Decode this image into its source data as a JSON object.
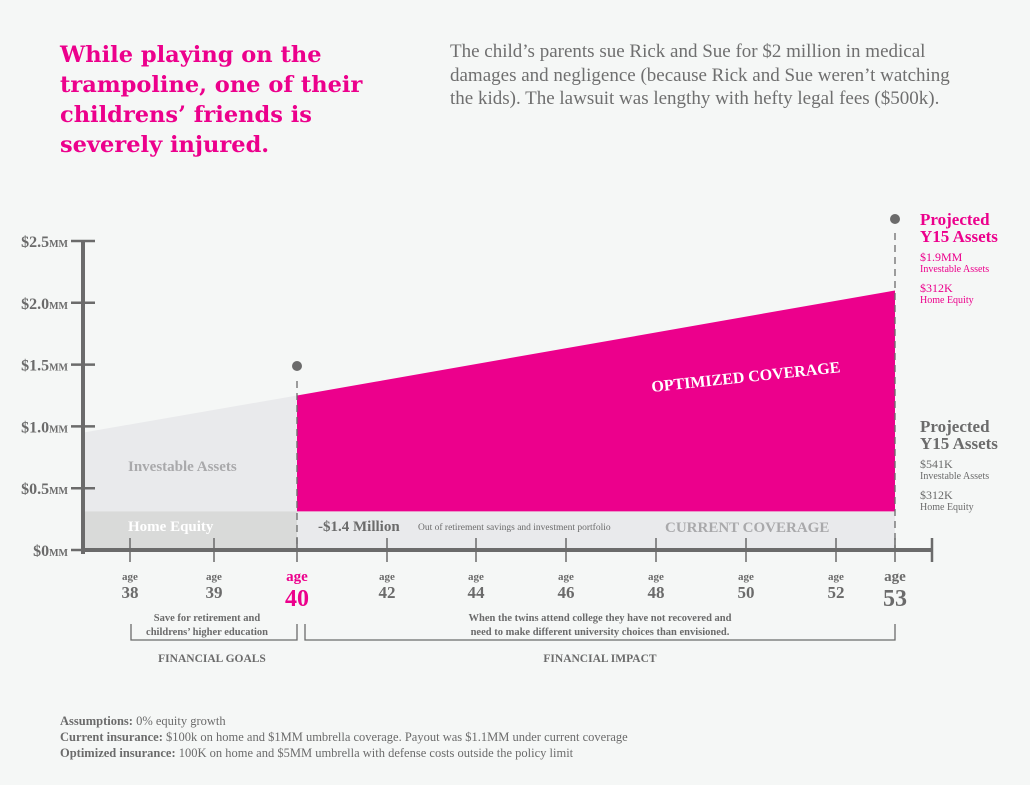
{
  "headline": "While playing on the trampoline, one of their childrens’ friends is severely injured.",
  "description": "The child’s parents sue Rick and Sue for $2 million in medical damages and negligence (because Rick and Sue weren’t watching the kids). The lawsuit was lengthy with hefty legal fees ($500k).",
  "colors": {
    "accent": "#ec008c",
    "axis": "#6b6b6b",
    "investable_current": "#e9eaec",
    "home_equity_left": "#d9dad9"
  },
  "chart_data": {
    "type": "area",
    "y_tick_labels": [
      "$0",
      "$0.5",
      "$1.0",
      "$1.5",
      "$2.0",
      "$2.5"
    ],
    "y_tick_values": [
      0,
      0.5,
      1.0,
      1.5,
      2.0,
      2.5
    ],
    "y_unit": "MM",
    "ylim": [
      0,
      2.5
    ],
    "x_prefix": "age",
    "x_ticks": [
      38,
      39,
      40,
      42,
      44,
      46,
      48,
      50,
      52,
      53
    ],
    "highlight_ages": [
      40,
      53
    ],
    "series": [
      {
        "name": "Investable Assets",
        "points": [
          [
            37.4,
            0.95
          ],
          [
            40,
            1.25
          ]
        ]
      },
      {
        "name": "Home Equity",
        "value": 0.312
      },
      {
        "name": "OPTIMIZED COVERAGE",
        "points": [
          [
            40,
            1.25
          ],
          [
            53,
            2.1
          ]
        ],
        "base": 0.312
      },
      {
        "name": "CURRENT COVERAGE",
        "value": 0.312
      }
    ],
    "labels": {
      "investable": "Investable Assets",
      "home_equity": "Home Equity",
      "optimized": "OPTIMIZED COVERAGE",
      "current": "CURRENT COVERAGE",
      "loss_amount": "-$1.4 Million",
      "loss_note": "Out of retirement savings and investment portfolio"
    },
    "brackets": [
      {
        "note_line1": "Save for retirement and",
        "note_line2": "childrens’ higher education",
        "title": "FINANCIAL GOALS"
      },
      {
        "note_line1": "When the twins attend college they have not recovered and",
        "note_line2": "need to make different university choices than envisioned.",
        "title": "FINANCIAL IMPACT"
      }
    ]
  },
  "projected_optimized": {
    "title1": "Projected",
    "title2": "Y15 Assets",
    "investable_value": "$1.9MM",
    "investable_label": "Investable Assets",
    "home_value": "$312K",
    "home_label": "Home Equity"
  },
  "projected_current": {
    "title1": "Projected",
    "title2": "Y15 Assets",
    "investable_value": "$541K",
    "investable_label": "Investable Assets",
    "home_value": "$312K",
    "home_label": "Home Equity"
  },
  "footnotes": [
    {
      "label": "Assumptions:",
      "text": " 0% equity growth"
    },
    {
      "label": "Current insurance:",
      "text": " $100k on home and $1MM umbrella coverage. Payout was $1.1MM under current coverage"
    },
    {
      "label": "Optimized insurance:",
      "text": " 100K on home and $5MM umbrella with defense costs outside the policy limit"
    }
  ]
}
